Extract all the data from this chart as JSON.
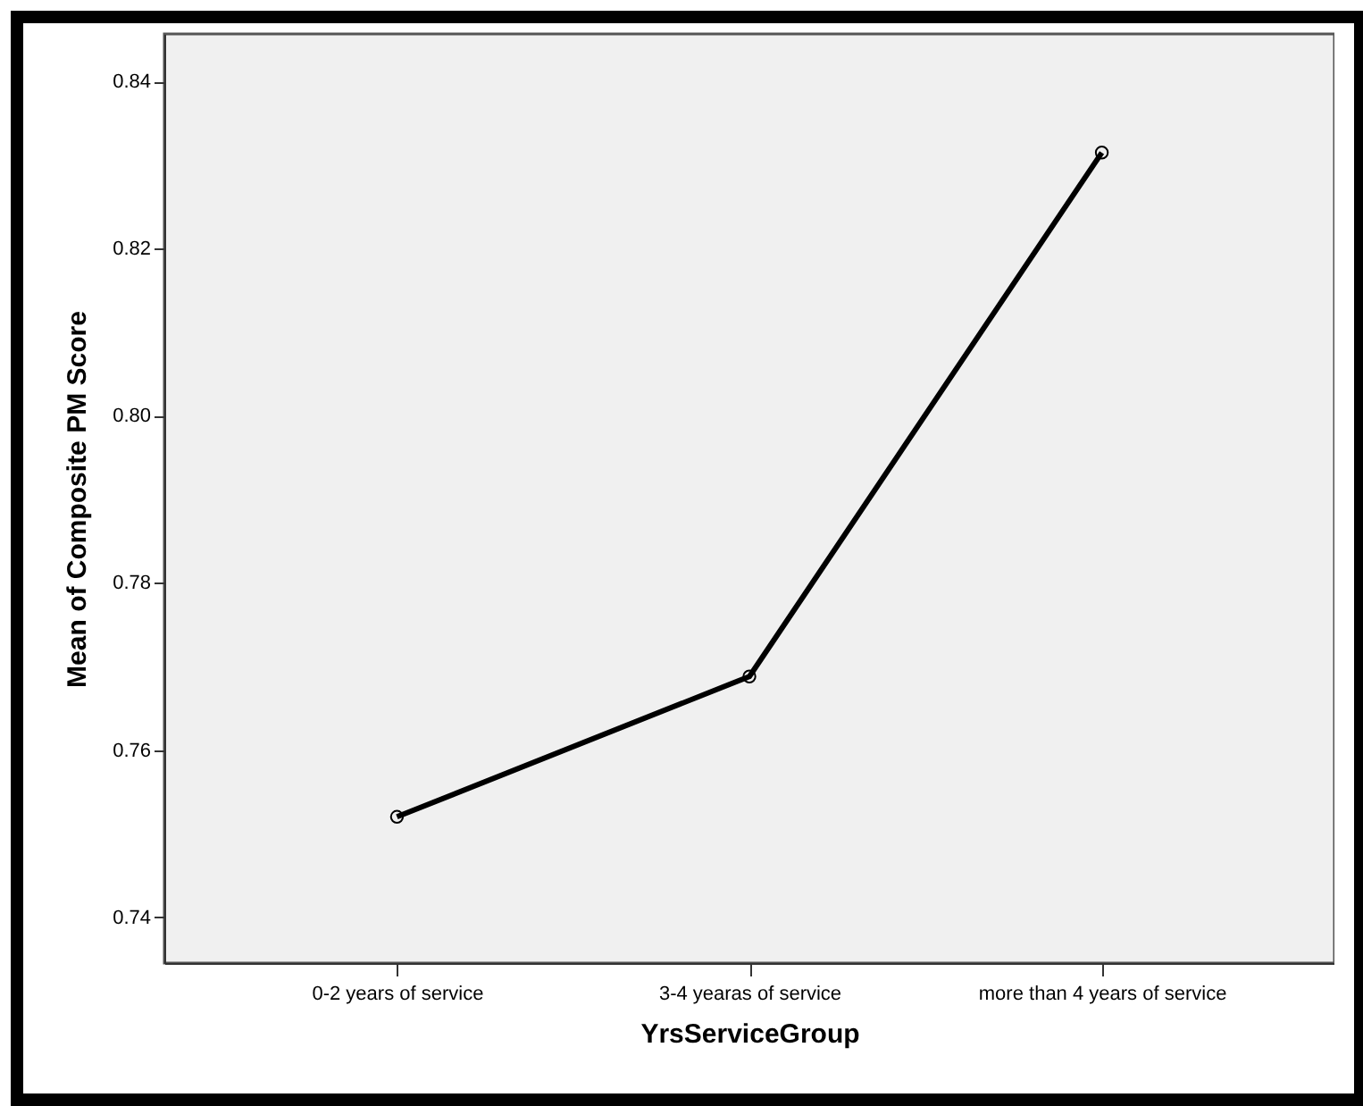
{
  "chart_data": {
    "type": "line",
    "xlabel": "YrsServiceGroup",
    "ylabel": "Mean of Composite PM Score",
    "categories": [
      "0-2 years of service",
      "3-4 yearas of service",
      "more than 4 years of service"
    ],
    "series": [
      {
        "color": "#000000",
        "values": [
          0.752,
          0.7688,
          0.8315
        ]
      }
    ],
    "ylim": [
      0.7345,
      0.8457
    ],
    "yticks": [
      0.74,
      0.76,
      0.78,
      {
        "value": 0.8,
        "label": "0.80"
      },
      0.82,
      0.84
    ],
    "grid": false,
    "marker": "circle",
    "line_style": "solid"
  }
}
